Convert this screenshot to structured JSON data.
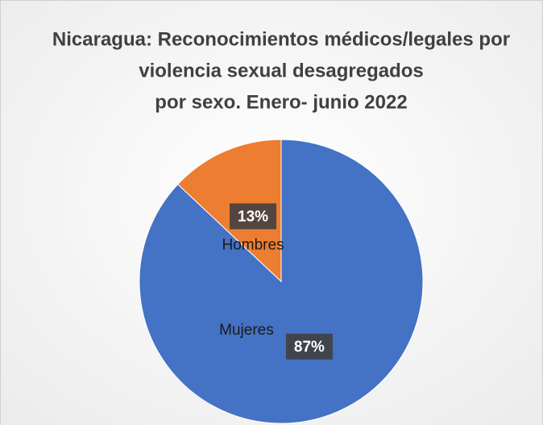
{
  "chart_data": {
    "type": "pie",
    "title": [
      "Nicaragua: Reconocimientos médicos/legales por",
      "violencia sexual desagregados",
      "por sexo. Enero- junio 2022"
    ],
    "categories": [
      "Mujeres",
      "Hombres"
    ],
    "values": [
      87,
      13
    ],
    "value_labels": [
      "87%",
      "13%"
    ],
    "colors": [
      "#4472c4",
      "#ed7d31"
    ]
  }
}
